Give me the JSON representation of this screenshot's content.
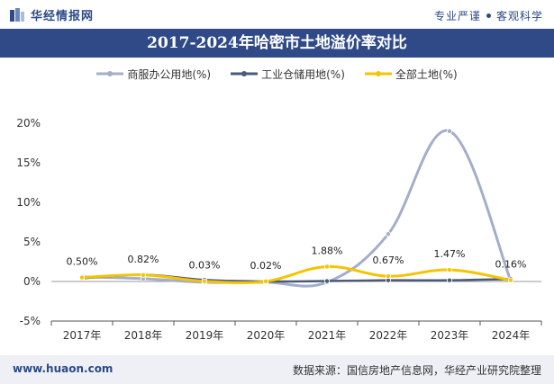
{
  "header": {
    "brand": "华经情报网",
    "slogan_left": "专业严谨",
    "slogan_right": "客观科学"
  },
  "title": "2017-2024年哈密市土地溢价率对比",
  "footer": {
    "website": "www.huaon.com",
    "source": "数据来源：国信房地产信息网，华经产业研究院整理"
  },
  "colors": {
    "brand": "#2f4a86",
    "commercial": "#a3aec9",
    "industrial": "#4a5a7a",
    "all_land": "#f5c400"
  },
  "chart_data": {
    "type": "line",
    "categories": [
      "2017年",
      "2018年",
      "2019年",
      "2020年",
      "2021年",
      "2022年",
      "2023年",
      "2024年"
    ],
    "ylim": [
      -5,
      20
    ],
    "yticks": [
      "-5%",
      "0%",
      "5%",
      "10%",
      "15%",
      "20%"
    ],
    "ytick_values": [
      -5,
      0,
      5,
      10,
      15,
      20
    ],
    "series": [
      {
        "name": "商服办公用地(%)",
        "values": [
          0.6,
          0.35,
          -0.1,
          -0.1,
          -0.1,
          6.0,
          19.0,
          0.1
        ]
      },
      {
        "name": "工业仓储用地(%)",
        "values": [
          0.4,
          0.85,
          0.2,
          0.0,
          0.05,
          0.15,
          0.15,
          0.3
        ]
      },
      {
        "name": "全部土地(%)",
        "values": [
          0.5,
          0.82,
          0.03,
          0.02,
          1.88,
          0.67,
          1.47,
          0.16
        ],
        "labels": [
          "0.50%",
          "0.82%",
          "0.03%",
          "0.02%",
          "1.88%",
          "0.67%",
          "1.47%",
          "0.16%"
        ]
      }
    ]
  }
}
